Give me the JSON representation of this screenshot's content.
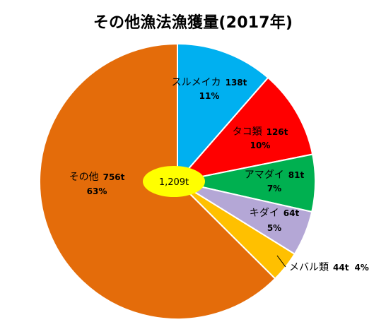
{
  "chart_data": {
    "type": "pie",
    "title": "その他漁法漁獲量(2017年)",
    "center_label": "1,209t",
    "center_label_color": "#ffff00",
    "slices": [
      {
        "name": "スルメイカ",
        "amount_label": "138t",
        "percent_label": "11%",
        "value": 138,
        "color": "#00b0f0"
      },
      {
        "name": "タコ類",
        "amount_label": "126t",
        "percent_label": "10%",
        "value": 126,
        "color": "#ff0000"
      },
      {
        "name": "アマダイ",
        "amount_label": "81t",
        "percent_label": "7%",
        "value": 81,
        "color": "#00b050"
      },
      {
        "name": "キダイ",
        "amount_label": "64t",
        "percent_label": "5%",
        "value": 64,
        "color": "#b4a7d6"
      },
      {
        "name": "メバル類",
        "amount_label": "44t",
        "percent_label": "4%",
        "value": 44,
        "color": "#ffc000"
      },
      {
        "name": "その他",
        "amount_label": "756t",
        "percent_label": "63%",
        "value": 756,
        "color": "#e46c0a"
      }
    ]
  }
}
